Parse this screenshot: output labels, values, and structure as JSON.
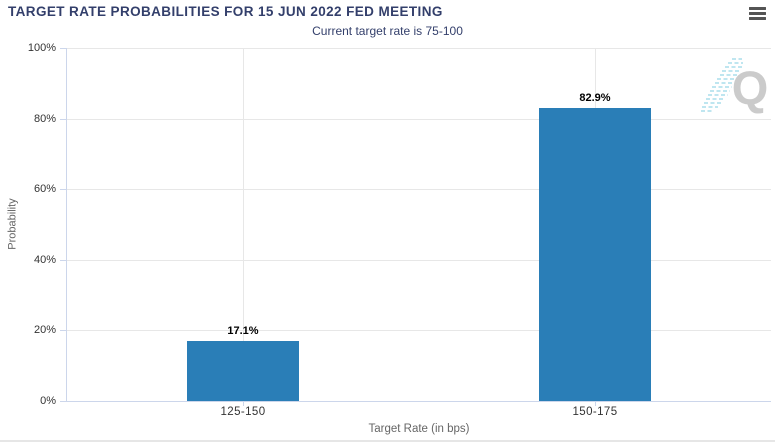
{
  "header": {
    "title": "TARGET RATE PROBABILITIES FOR 15 JUN 2022 FED MEETING",
    "subtitle": "Current target rate is 75-100",
    "menu_icon": "hamburger-menu"
  },
  "watermark": {
    "letter": "Q"
  },
  "colors": {
    "bar": "#2a7eb7",
    "title_text": "#333f6b",
    "grid": "#e7e7e7",
    "axis_line": "#ccd6eb",
    "axis_label": "#333333",
    "axis_title": "#666666",
    "data_label": "#000000",
    "watermark_q": "#c9c9c9",
    "watermark_dashes": "#a5dce9",
    "menu_icon": "#545454"
  },
  "chart_data": {
    "type": "bar",
    "title": "TARGET RATE PROBABILITIES FOR 15 JUN 2022 FED MEETING",
    "subtitle": "Current target rate is 75-100",
    "categories": [
      "125-150",
      "150-175"
    ],
    "values": [
      17.1,
      82.9
    ],
    "data_labels": [
      "17.1%",
      "82.9%"
    ],
    "xlabel": "Target Rate (in bps)",
    "ylabel": "Probability",
    "ylim": [
      0,
      100
    ],
    "ytick_step": 20,
    "ytick_labels": [
      "0%",
      "20%",
      "40%",
      "60%",
      "80%",
      "100%"
    ],
    "grid": true,
    "legend": "none"
  }
}
